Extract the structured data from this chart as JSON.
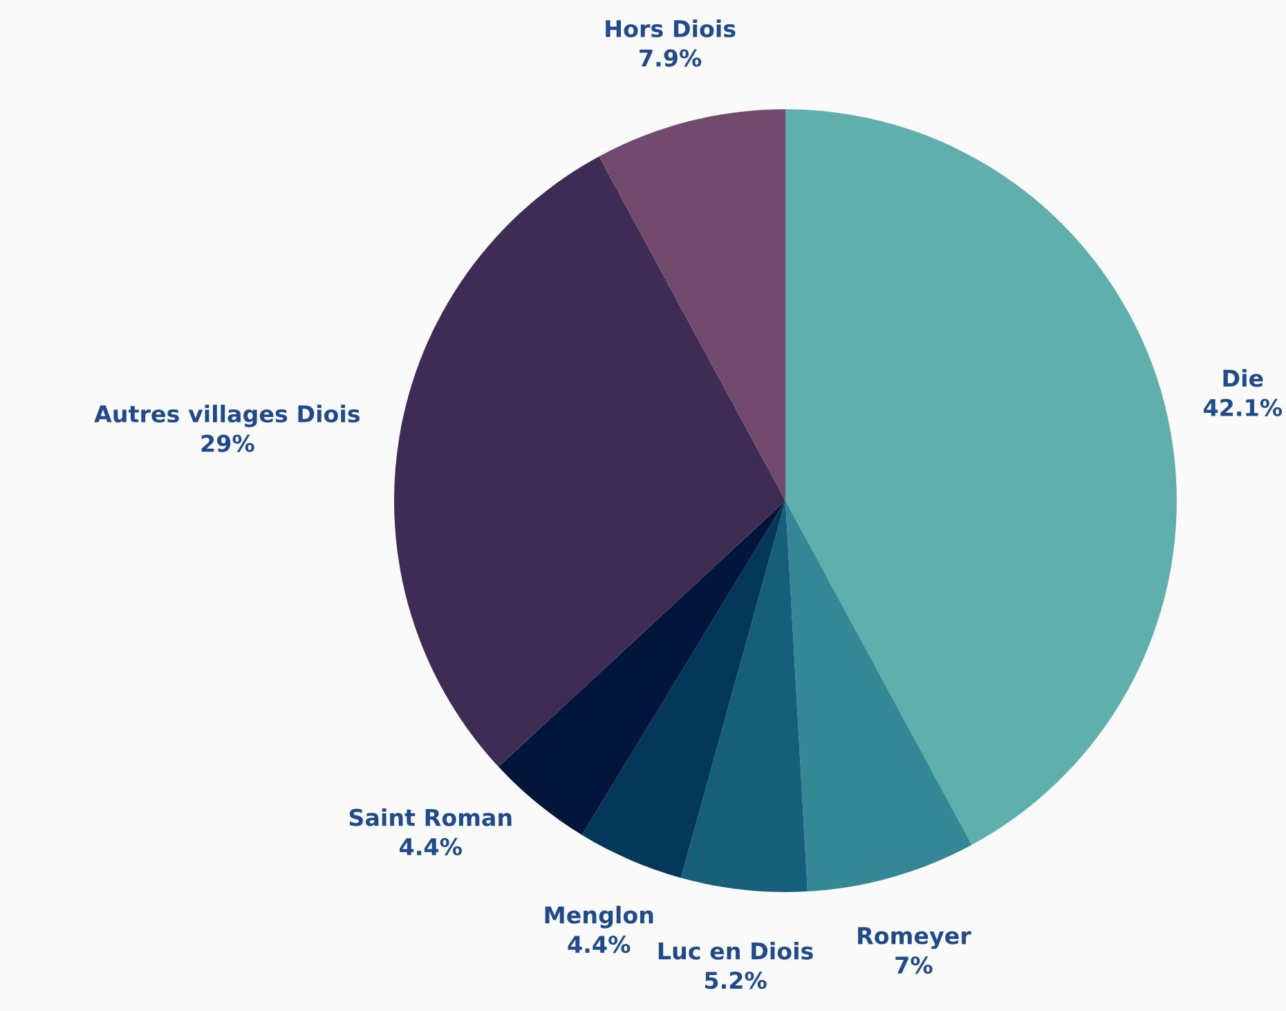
{
  "chart_data": {
    "type": "pie",
    "categories": [
      "Die",
      "Romeyer",
      "Luc en Diois",
      "Menglon",
      "Saint Roman",
      "Autres villages Diois",
      "Hors Diois"
    ],
    "values": [
      42.1,
      7,
      5.2,
      4.4,
      4.4,
      29,
      7.9
    ],
    "value_labels": [
      "42.1%",
      "7%",
      "5.2%",
      "4.4%",
      "4.4%",
      "29%",
      "7.9%"
    ],
    "colors": [
      "#5fafac",
      "#348896",
      "#155f7a",
      "#04385a",
      "#02153a",
      "#3e2c54",
      "#714a6e"
    ]
  }
}
